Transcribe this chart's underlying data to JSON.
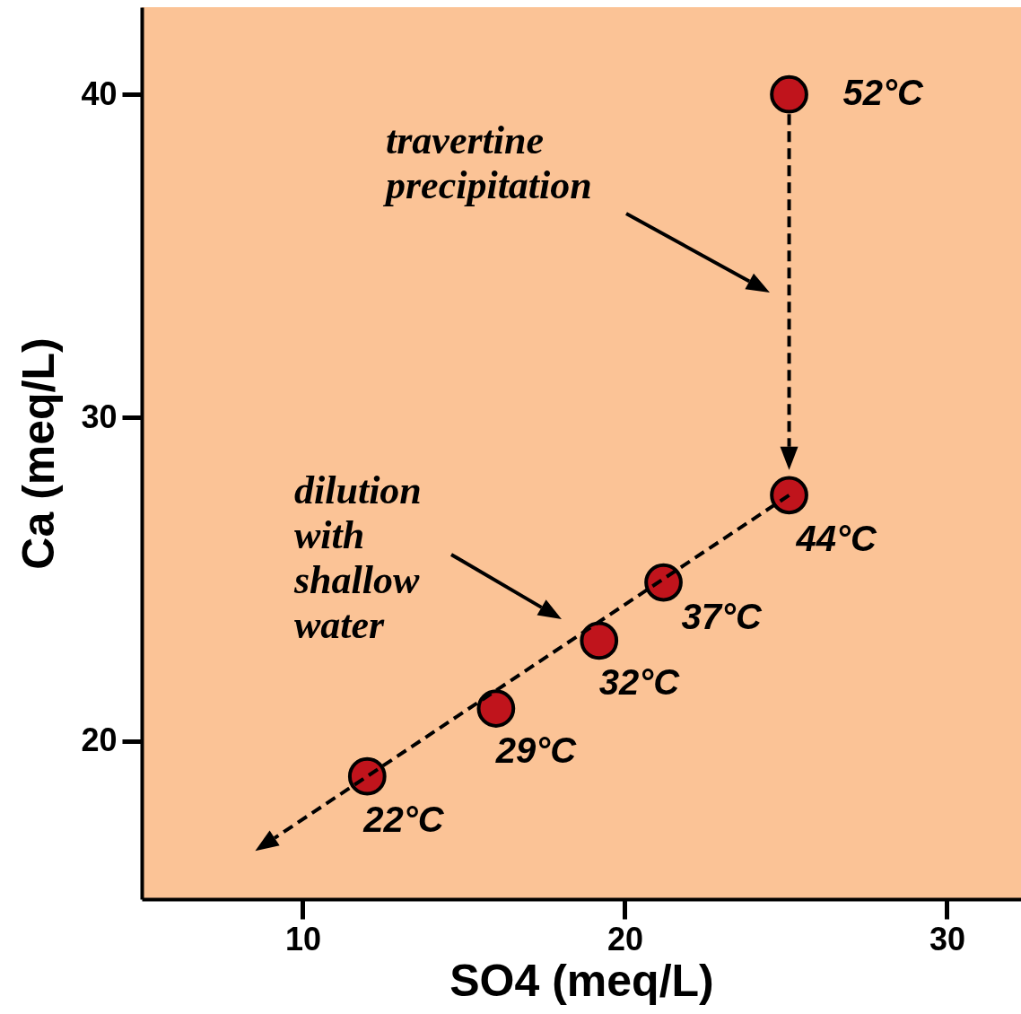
{
  "chart_data": {
    "type": "scatter",
    "xlabel": "SO4 (meq/L)",
    "ylabel": "Ca (meq/L)",
    "xlim": [
      5,
      32.3
    ],
    "ylim": [
      15.1,
      42.7
    ],
    "xticks": [
      10,
      20,
      30
    ],
    "yticks": [
      20,
      30,
      40
    ],
    "grid": false,
    "marker": "circle",
    "series": [
      {
        "color": "#c0141c",
        "x": [
          25.1,
          25.1,
          21.2,
          19.2,
          16.0,
          12.0
        ],
        "values": [
          40,
          27.6,
          24.9,
          23.1,
          21.0,
          18.9
        ]
      }
    ],
    "annotations": [
      {
        "text": "52°C",
        "x": 25.1,
        "y": 40
      },
      {
        "text": "44°C",
        "x": 25.1,
        "y": 27.6
      },
      {
        "text": "37°C",
        "x": 21.2,
        "y": 24.9
      },
      {
        "text": "32°C",
        "x": 19.2,
        "y": 23.1
      },
      {
        "text": "29°C",
        "x": 16.0,
        "y": 21.0
      },
      {
        "text": "22°C",
        "x": 12.0,
        "y": 18.9
      },
      "travertine precipitation",
      "dilution with shallow water"
    ]
  }
}
